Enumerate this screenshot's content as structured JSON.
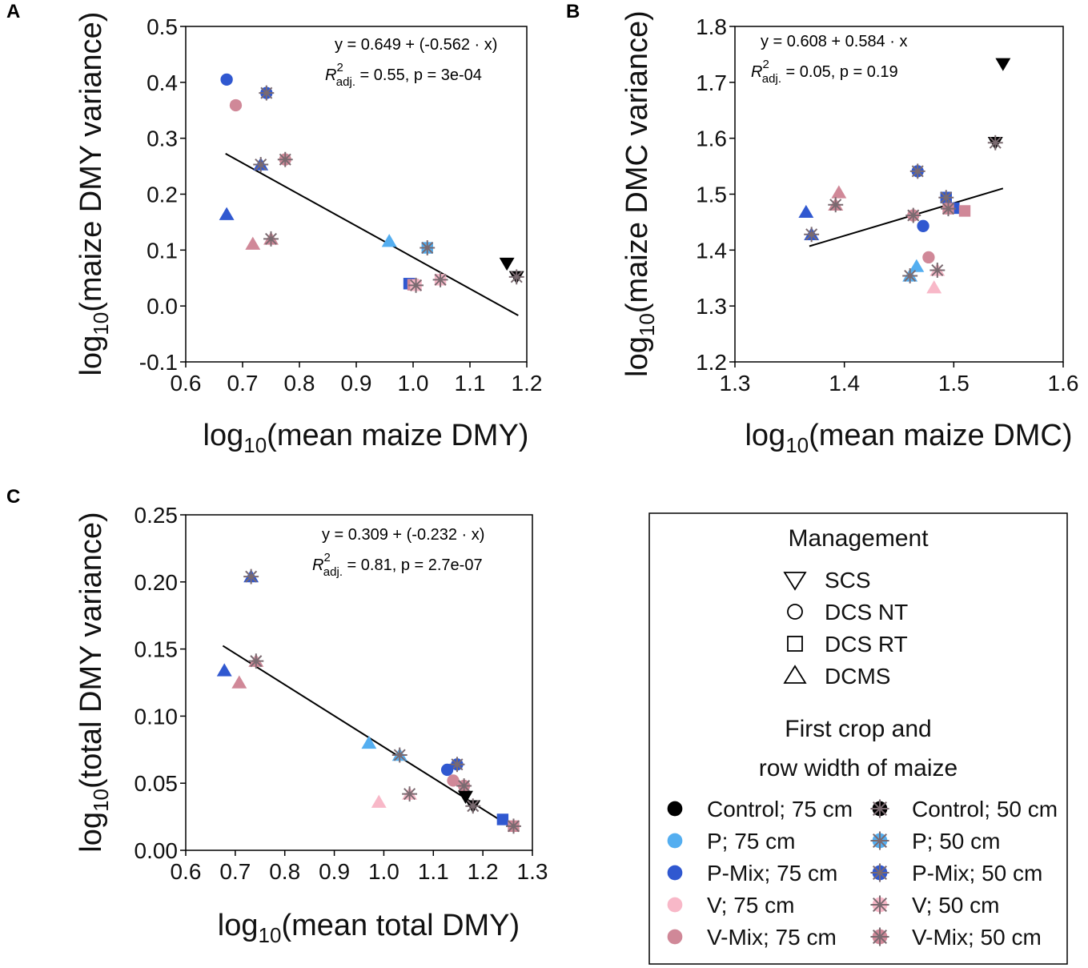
{
  "colors": {
    "Control": "#000000",
    "P": "#54aef0",
    "P-Mix": "#3058d0",
    "V": "#f8b8c8",
    "V-Mix": "#d08898"
  },
  "chart_data": [
    {
      "type": "scatter",
      "panel_label": "A",
      "xlabel": "log10(mean maize DMY)",
      "ylabel": "log10(maize DMY variance)",
      "xlim": [
        0.6,
        1.2
      ],
      "ylim": [
        -0.1,
        0.5
      ],
      "x_ticks": [
        "0.6",
        "0.7",
        "0.8",
        "0.9",
        "1.0",
        "1.1",
        "1.2"
      ],
      "y_ticks": [
        "-0.1",
        "0.0",
        "0.1",
        "0.2",
        "0.3",
        "0.4",
        "0.5"
      ],
      "regression": {
        "intercept": 0.649,
        "slope": -0.562,
        "x_range": [
          0.67,
          1.185
        ]
      },
      "equation": {
        "prefix": "y = 0.649 + (-0.562 · x)",
        "r2_text": " = 0.55,  ",
        "p_text": "p = 3e-04"
      },
      "points": [
        {
          "x": 0.672,
          "y": 0.405,
          "shape": "circle",
          "crop": "P-Mix",
          "row": "75"
        },
        {
          "x": 0.688,
          "y": 0.359,
          "shape": "circle",
          "crop": "V-Mix",
          "row": "75"
        },
        {
          "x": 0.742,
          "y": 0.381,
          "shape": "circle",
          "crop": "P-Mix",
          "row": "50"
        },
        {
          "x": 0.732,
          "y": 0.253,
          "shape": "triangle",
          "crop": "P-Mix",
          "row": "50"
        },
        {
          "x": 0.775,
          "y": 0.262,
          "shape": "circle",
          "crop": "V-Mix",
          "row": "50"
        },
        {
          "x": 0.672,
          "y": 0.164,
          "shape": "triangle",
          "crop": "P-Mix",
          "row": "75"
        },
        {
          "x": 0.718,
          "y": 0.111,
          "shape": "triangle",
          "crop": "V-Mix",
          "row": "75"
        },
        {
          "x": 0.75,
          "y": 0.12,
          "shape": "triangle",
          "crop": "V-Mix",
          "row": "50"
        },
        {
          "x": 0.958,
          "y": 0.116,
          "shape": "triangle",
          "crop": "P",
          "row": "75"
        },
        {
          "x": 1.025,
          "y": 0.104,
          "shape": "square",
          "crop": "P",
          "row": "50"
        },
        {
          "x": 0.993,
          "y": 0.04,
          "shape": "square",
          "crop": "P-Mix",
          "row": "75"
        },
        {
          "x": 1.0,
          "y": 0.038,
          "shape": "square",
          "crop": "V-Mix",
          "row": "75"
        },
        {
          "x": 1.005,
          "y": 0.037,
          "shape": "square",
          "crop": "V",
          "row": "50"
        },
        {
          "x": 1.048,
          "y": 0.047,
          "shape": "square",
          "crop": "V",
          "row": "50"
        },
        {
          "x": 1.165,
          "y": 0.076,
          "shape": "triangle-down",
          "crop": "Control",
          "row": "75"
        },
        {
          "x": 1.182,
          "y": 0.052,
          "shape": "triangle-down",
          "crop": "Control",
          "row": "50"
        }
      ]
    },
    {
      "type": "scatter",
      "panel_label": "B",
      "xlabel": "log10(mean maize DMC)",
      "ylabel": "log10(maize DMC variance)",
      "xlim": [
        1.3,
        1.6
      ],
      "ylim": [
        1.2,
        1.8
      ],
      "x_ticks": [
        "1.3",
        "1.4",
        "1.5",
        "1.6"
      ],
      "y_ticks": [
        "1.2",
        "1.3",
        "1.4",
        "1.5",
        "1.6",
        "1.7",
        "1.8"
      ],
      "regression": {
        "intercept": 0.608,
        "slope": 0.584,
        "x_range": [
          1.368,
          1.545
        ]
      },
      "equation": {
        "prefix": "y = 0.608 + 0.584 · x",
        "r2_text": " = 0.05,  ",
        "p_text": "p = 0.19"
      },
      "points": [
        {
          "x": 1.545,
          "y": 1.733,
          "shape": "triangle-down",
          "crop": "Control",
          "row": "75"
        },
        {
          "x": 1.538,
          "y": 1.592,
          "shape": "triangle-down",
          "crop": "Control",
          "row": "50"
        },
        {
          "x": 1.467,
          "y": 1.541,
          "shape": "circle",
          "crop": "P-Mix",
          "row": "50"
        },
        {
          "x": 1.395,
          "y": 1.503,
          "shape": "triangle",
          "crop": "V-Mix",
          "row": "75"
        },
        {
          "x": 1.392,
          "y": 1.481,
          "shape": "triangle",
          "crop": "V-Mix",
          "row": "50"
        },
        {
          "x": 1.493,
          "y": 1.494,
          "shape": "square",
          "crop": "P-Mix",
          "row": "50"
        },
        {
          "x": 1.5,
          "y": 1.475,
          "shape": "square",
          "crop": "P-Mix",
          "row": "75"
        },
        {
          "x": 1.51,
          "y": 1.47,
          "shape": "square",
          "crop": "V-Mix",
          "row": "75"
        },
        {
          "x": 1.495,
          "y": 1.474,
          "shape": "square",
          "crop": "V-Mix",
          "row": "50"
        },
        {
          "x": 1.463,
          "y": 1.462,
          "shape": "circle",
          "crop": "V-Mix",
          "row": "50"
        },
        {
          "x": 1.365,
          "y": 1.468,
          "shape": "triangle",
          "crop": "P-Mix",
          "row": "75"
        },
        {
          "x": 1.37,
          "y": 1.428,
          "shape": "triangle",
          "crop": "P-Mix",
          "row": "50"
        },
        {
          "x": 1.472,
          "y": 1.443,
          "shape": "circle",
          "crop": "P-Mix",
          "row": "75"
        },
        {
          "x": 1.477,
          "y": 1.387,
          "shape": "circle",
          "crop": "V-Mix",
          "row": "75"
        },
        {
          "x": 1.466,
          "y": 1.371,
          "shape": "triangle",
          "crop": "P",
          "row": "75"
        },
        {
          "x": 1.46,
          "y": 1.354,
          "shape": "triangle",
          "crop": "P",
          "row": "50"
        },
        {
          "x": 1.485,
          "y": 1.364,
          "shape": "triangle",
          "crop": "V",
          "row": "50"
        },
        {
          "x": 1.482,
          "y": 1.333,
          "shape": "triangle",
          "crop": "V",
          "row": "75"
        }
      ]
    },
    {
      "type": "scatter",
      "panel_label": "C",
      "xlabel": "log10(mean total DMY)",
      "ylabel": "log10(total DMY variance)",
      "xlim": [
        0.6,
        1.3
      ],
      "ylim": [
        0.0,
        0.25
      ],
      "x_ticks": [
        "0.6",
        "0.7",
        "0.8",
        "0.9",
        "1.0",
        "1.1",
        "1.2",
        "1.3"
      ],
      "y_ticks": [
        "0.00",
        "0.05",
        "0.10",
        "0.15",
        "0.20",
        "0.25"
      ],
      "regression": {
        "intercept": 0.309,
        "slope": -0.232,
        "x_range": [
          0.675,
          1.265
        ]
      },
      "equation": {
        "prefix": "y = 0.309 + (-0.232 · x)",
        "r2_text": " = 0.81,  ",
        "p_text": "p = 2.7e-07"
      },
      "points": [
        {
          "x": 0.732,
          "y": 0.204,
          "shape": "triangle",
          "crop": "P-Mix",
          "row": "50"
        },
        {
          "x": 0.742,
          "y": 0.141,
          "shape": "triangle",
          "crop": "V-Mix",
          "row": "50"
        },
        {
          "x": 0.678,
          "y": 0.134,
          "shape": "triangle",
          "crop": "P-Mix",
          "row": "75"
        },
        {
          "x": 0.708,
          "y": 0.125,
          "shape": "triangle",
          "crop": "V-Mix",
          "row": "75"
        },
        {
          "x": 0.97,
          "y": 0.08,
          "shape": "triangle",
          "crop": "P",
          "row": "75"
        },
        {
          "x": 1.032,
          "y": 0.071,
          "shape": "triangle",
          "crop": "P",
          "row": "50"
        },
        {
          "x": 1.148,
          "y": 0.064,
          "shape": "circle",
          "crop": "P-Mix",
          "row": "50"
        },
        {
          "x": 1.128,
          "y": 0.06,
          "shape": "circle",
          "crop": "P-Mix",
          "row": "75"
        },
        {
          "x": 1.14,
          "y": 0.052,
          "shape": "circle",
          "crop": "V-Mix",
          "row": "75"
        },
        {
          "x": 1.162,
          "y": 0.048,
          "shape": "circle",
          "crop": "V-Mix",
          "row": "50"
        },
        {
          "x": 1.052,
          "y": 0.042,
          "shape": "triangle",
          "crop": "V",
          "row": "50"
        },
        {
          "x": 0.99,
          "y": 0.036,
          "shape": "triangle",
          "crop": "V",
          "row": "75"
        },
        {
          "x": 1.165,
          "y": 0.04,
          "shape": "triangle-down",
          "crop": "Control",
          "row": "75"
        },
        {
          "x": 1.18,
          "y": 0.033,
          "shape": "triangle-down",
          "crop": "Control",
          "row": "50"
        },
        {
          "x": 1.24,
          "y": 0.023,
          "shape": "square",
          "crop": "P-Mix",
          "row": "75"
        },
        {
          "x": 1.262,
          "y": 0.018,
          "shape": "square",
          "crop": "V-Mix",
          "row": "50"
        }
      ]
    }
  ],
  "legend": {
    "management_title": "Management",
    "management": [
      {
        "label": "SCS",
        "shape": "triangle-down"
      },
      {
        "label": "DCS NT",
        "shape": "circle"
      },
      {
        "label": "DCS RT",
        "shape": "square"
      },
      {
        "label": "DCMS",
        "shape": "triangle"
      }
    ],
    "crop_title_1": "First crop and",
    "crop_title_2": "row width of maize",
    "crops": [
      {
        "label75": "Control; 75 cm",
        "label50": "Control; 50 cm",
        "crop": "Control"
      },
      {
        "label75": "P; 75 cm",
        "label50": "P; 50 cm",
        "crop": "P"
      },
      {
        "label75": "P-Mix; 75 cm",
        "label50": "P-Mix; 50 cm",
        "crop": "P-Mix"
      },
      {
        "label75": "V; 75 cm",
        "label50": "V; 50 cm",
        "crop": "V"
      },
      {
        "label75": "V-Mix; 75 cm",
        "label50": "V-Mix; 50 cm",
        "crop": "V-Mix"
      }
    ]
  }
}
